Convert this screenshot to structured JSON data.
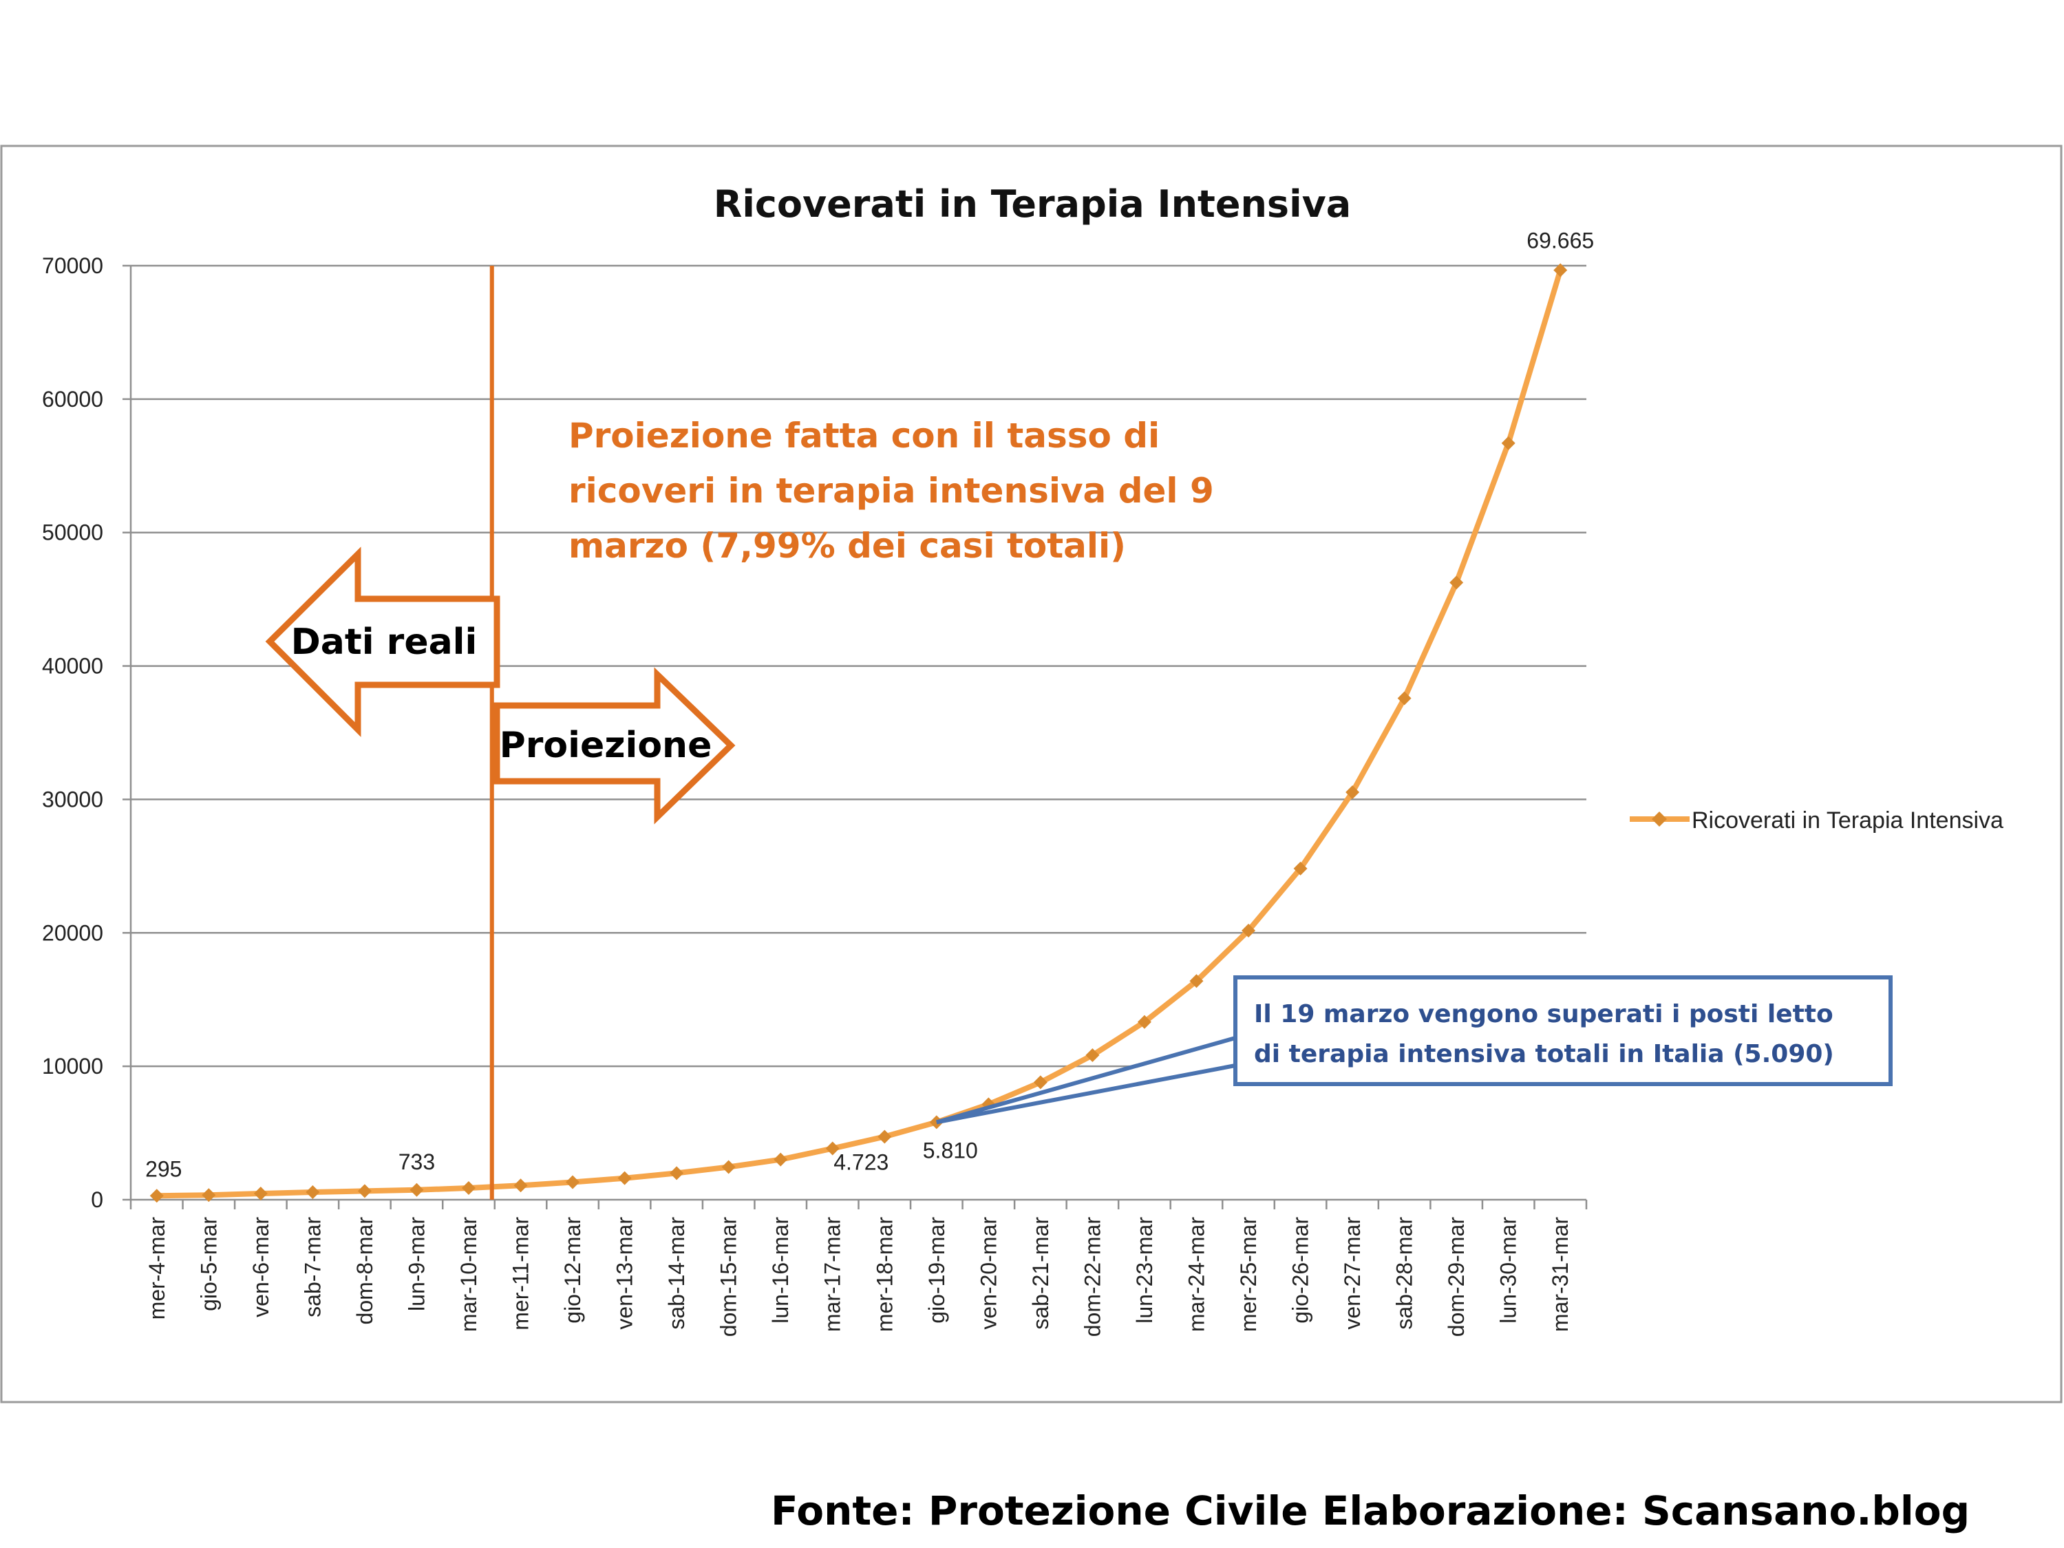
{
  "chart_data": {
    "type": "line",
    "title": "Ricoverati in Terapia Intensiva",
    "categories": [
      "mer-4-mar",
      "gio-5-mar",
      "ven-6-mar",
      "sab-7-mar",
      "dom-8-mar",
      "lun-9-mar",
      "mar-10-mar",
      "mer-11-mar",
      "gio-12-mar",
      "ven-13-mar",
      "sab-14-mar",
      "dom-15-mar",
      "lun-16-mar",
      "mar-17-mar",
      "mer-18-mar",
      "gio-19-mar",
      "ven-20-mar",
      "sab-21-mar",
      "dom-22-mar",
      "lun-23-mar",
      "mar-24-mar",
      "mer-25-mar",
      "gio-26-mar",
      "ven-27-mar",
      "sab-28-mar",
      "dom-29-mar",
      "lun-30-mar",
      "mar-31-mar"
    ],
    "series": [
      {
        "name": "Ricoverati in Terapia Intensiva",
        "color": "#F5A54A",
        "marker_color": "#D98A2E",
        "values": [
          295,
          351,
          462,
          567,
          650,
          733,
          877,
          1068,
          1314,
          1617,
          1990,
          2449,
          3014,
          3840,
          4723,
          5810,
          7150,
          8800,
          10830,
          13320,
          16390,
          20170,
          24820,
          30540,
          37580,
          46250,
          56700,
          69665
        ]
      }
    ],
    "ylim": [
      0,
      70000
    ],
    "yticks": [
      "0",
      "10000",
      "20000",
      "30000",
      "40000",
      "50000",
      "60000",
      "70000"
    ],
    "grid": true,
    "legend_position": "right",
    "data_labels": [
      {
        "index": 0,
        "text": "295"
      },
      {
        "index": 5,
        "text": "733"
      },
      {
        "index": 14,
        "text": "4.723"
      },
      {
        "index": 15,
        "text": "5.810"
      },
      {
        "index": 27,
        "text": "69.665"
      }
    ],
    "annotations": {
      "divider_after_category": "mar-10-mar",
      "projection_note": [
        "Proiezione fatta con il tasso di",
        "ricoveri in terapia intensiva del 9",
        "marzo (7,99% dei casi totali)"
      ],
      "left_arrow_label": "Dati reali",
      "right_arrow_label": "Proiezione",
      "callout_lines": [
        "Il 19 marzo vengono superati i posti letto",
        "di terapia intensiva totali in Italia (5.090)"
      ],
      "callout_points_to_category": "gio-19-mar",
      "accent_color": "#E07020",
      "callout_color": "#4A73B0"
    }
  },
  "footer": "Fonte: Protezione Civile   Elaborazione: Scansano.blog"
}
